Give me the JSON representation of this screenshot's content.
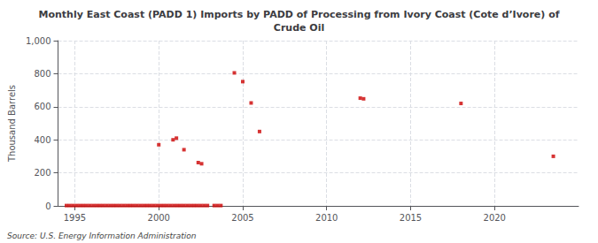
{
  "chart_data": {
    "type": "scatter",
    "title": "Monthly East Coast (PADD 1) Imports by PADD of Processing from Ivory Coast (Cote d’Ivore) of\nCrude Oil",
    "ylabel": "Thousand Barrels",
    "source": "Source: U.S. Energy Information Administration",
    "color": "#cc0000",
    "marker": "square",
    "grid": true,
    "xlim": [
      1994.0,
      2025.0
    ],
    "ylim": [
      0,
      1000
    ],
    "xticks": [
      1995,
      2000,
      2005,
      2010,
      2015,
      2020
    ],
    "yticks": [
      0,
      200,
      400,
      600,
      800,
      {
        "value": 1000,
        "label": "1,000"
      }
    ],
    "x": [
      1994.5,
      1994.7,
      1994.9,
      1995.1,
      1995.3,
      1995.5,
      1995.7,
      1995.9,
      1996.1,
      1996.3,
      1996.5,
      1996.7,
      1996.9,
      1997.1,
      1997.3,
      1997.5,
      1997.7,
      1997.9,
      1998.1,
      1998.3,
      1998.5,
      1998.7,
      1998.9,
      1999.1,
      1999.3,
      1999.5,
      1999.7,
      1999.9,
      2000.1,
      2000.3,
      2000.5,
      2000.7,
      2000.9,
      2001.1,
      2001.3,
      2001.5,
      2001.7,
      2001.9,
      2002.1,
      2002.3,
      2002.5,
      2002.7,
      2002.9,
      2003.3,
      2003.5,
      2003.7,
      2000.0,
      2000.85,
      2001.05,
      2001.5,
      2002.35,
      2002.55,
      2004.5,
      2005.0,
      2005.5,
      2006.0,
      2012.0,
      2012.2,
      2018.0,
      2023.5
    ],
    "values": [
      2,
      2,
      2,
      2,
      2,
      2,
      2,
      2,
      2,
      2,
      2,
      2,
      2,
      2,
      2,
      2,
      2,
      2,
      2,
      2,
      2,
      2,
      2,
      2,
      2,
      2,
      2,
      2,
      2,
      2,
      2,
      2,
      2,
      2,
      2,
      2,
      2,
      2,
      2,
      2,
      2,
      2,
      2,
      2,
      2,
      2,
      370,
      400,
      410,
      340,
      262,
      255,
      805,
      752,
      623,
      450,
      652,
      648,
      620,
      300
    ]
  }
}
